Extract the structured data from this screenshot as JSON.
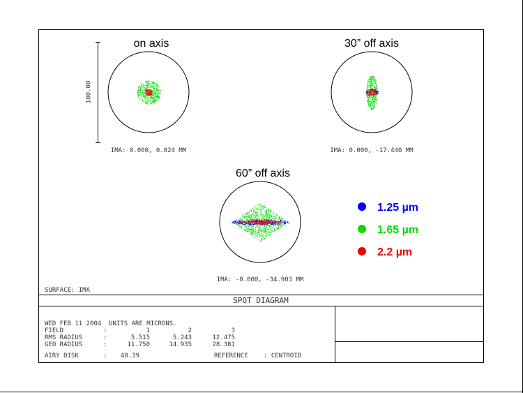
{
  "fields": [
    {
      "title": "on axis",
      "ima": "IMA: 0.000, 0.024 MM"
    },
    {
      "title": "30” off axis",
      "ima": "IMA: 0.000, -17.440 MM"
    },
    {
      "title": "60” off axis",
      "ima": "IMA: -0.000, -34.903 MM"
    }
  ],
  "scale_label": "100.00",
  "legend": [
    {
      "label": "1.25 µm",
      "color": "#0000ff"
    },
    {
      "label": "1.65 µm",
      "color": "#00dd00"
    },
    {
      "label": "2.2 µm",
      "color": "#ee0000"
    }
  ],
  "surface": "SURFACE: IMA",
  "plot_title": "SPOT DIAGRAM",
  "info": {
    "date_line": "WED FEB 11 2004  UNITS ARE MICRONS.",
    "rows": [
      [
        "FIELD",
        ":",
        "1",
        "2",
        "3"
      ],
      [
        "RMS RADIUS",
        ":",
        "5.515",
        "5.243",
        "12.475"
      ],
      [
        "GEO RADIUS",
        ":",
        "11.750",
        "14.935",
        "28.381"
      ]
    ],
    "airy": [
      "AIRY DISK",
      ":",
      "40.39",
      "REFERENCE",
      ": CENTROID"
    ]
  }
}
